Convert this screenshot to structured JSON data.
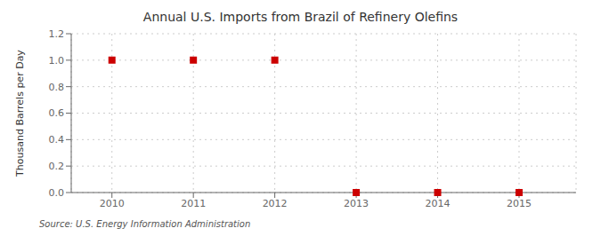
{
  "chart_data": {
    "type": "scatter",
    "title": "Annual U.S. Imports from Brazil of Refinery Olefins",
    "ylabel": "Thousand Barrels per Day",
    "annotation": "Source: U.S. Energy Information Administration",
    "x": [
      2010,
      2011,
      2012,
      2013,
      2014,
      2015
    ],
    "values": [
      1.0,
      1.0,
      1.0,
      0.0,
      0.0,
      0.0
    ],
    "xlim": [
      2009.5,
      2015.7
    ],
    "ylim": [
      0.0,
      1.2
    ],
    "xticks": [
      2010,
      2011,
      2012,
      2013,
      2014,
      2015
    ],
    "yticks": [
      {
        "value": 0.0,
        "label": "0.0"
      },
      0.2,
      0.4,
      0.6,
      0.8,
      {
        "value": 1.0,
        "label": "1.0"
      },
      1.2
    ],
    "color": "#CC0000",
    "marker": "square",
    "grid": true
  }
}
